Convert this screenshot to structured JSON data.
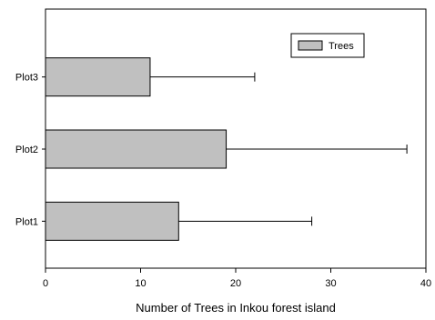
{
  "chart_data": {
    "type": "bar",
    "orientation": "horizontal",
    "categories": [
      "Plot1",
      "Plot2",
      "Plot3"
    ],
    "series": [
      {
        "name": "Trees",
        "values": [
          14,
          19,
          11
        ],
        "error": [
          14,
          19,
          11
        ],
        "color": "#c0c0c0"
      }
    ],
    "xlabel": "Number of Trees in Inkou forest island",
    "ylabel": "",
    "xlim": [
      0,
      40
    ],
    "xticks": [
      0,
      10,
      20,
      30,
      40
    ],
    "grid": false,
    "legend_position": "top-right"
  }
}
